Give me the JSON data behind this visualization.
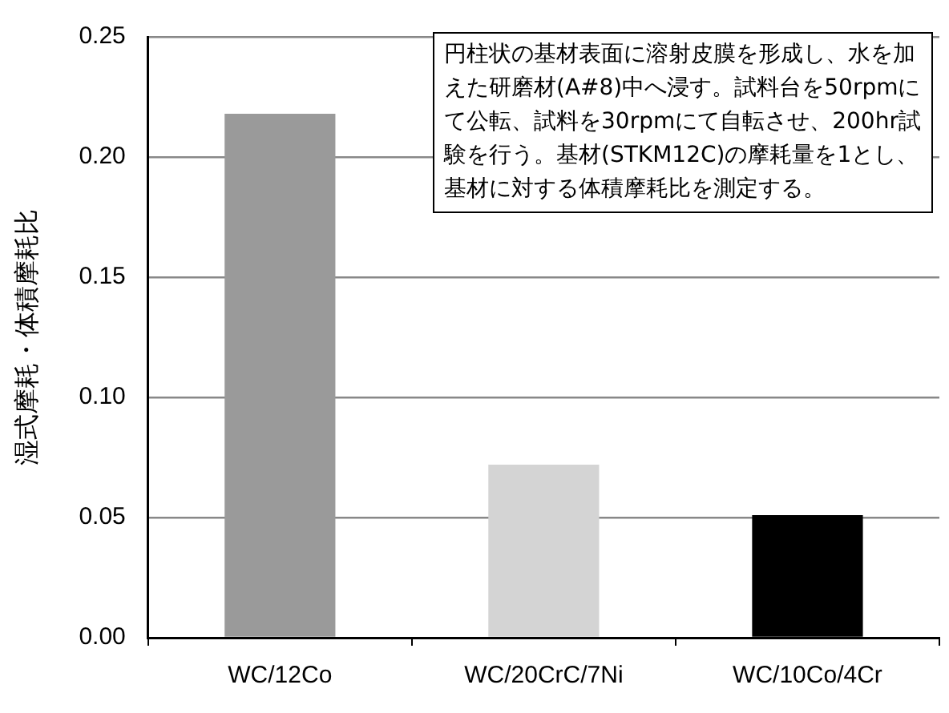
{
  "chart_data": {
    "type": "bar",
    "ylabel": "湿式摩耗・体積摩耗比",
    "categories": [
      "WC/12Co",
      "WC/20CrC/7Ni",
      "WC/10Co/4Cr"
    ],
    "values": [
      0.218,
      0.072,
      0.051
    ],
    "colors": [
      "#9a9a9a",
      "#d4d4d4",
      "#000000"
    ],
    "ylim": [
      0,
      0.25
    ],
    "yticks": [
      {
        "value": 0,
        "label": "0.00"
      },
      {
        "value": 0.05,
        "label": "0.05"
      },
      {
        "value": 0.1,
        "label": "0.10"
      },
      {
        "value": 0.15,
        "label": "0.15"
      },
      {
        "value": 0.2,
        "label": "0.20"
      },
      {
        "value": 0.25,
        "label": "0.25"
      }
    ],
    "grid": "y",
    "legend": false,
    "annotations": [
      "円柱状の基材表面に溶射皮膜を形成し、水を加えた研磨材(A#8)中へ浸す。試料台を50rpmにて公転、試料を30rpmにて自転させ、200hr試験を行う。基材(STKM12C)の摩耗量を1とし、基材に対する体積摩耗比を測定する。"
    ]
  }
}
